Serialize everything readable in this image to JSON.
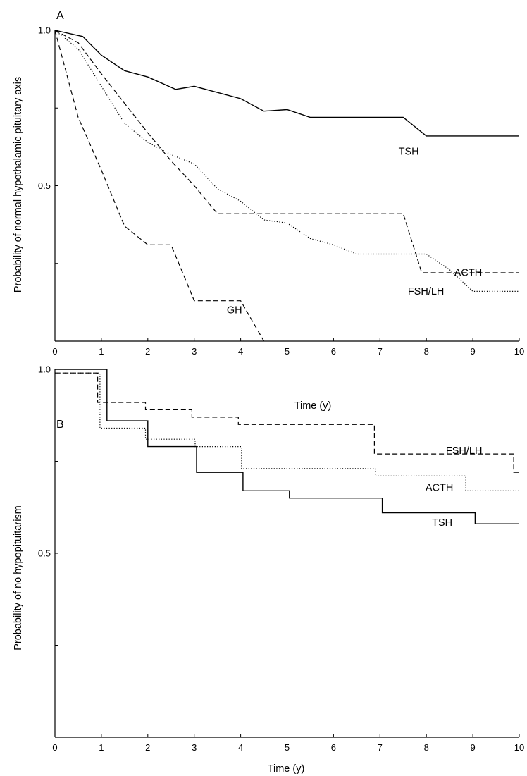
{
  "chart_data": [
    {
      "panel": "A",
      "type": "line",
      "xlabel": "Time (y)",
      "ylabel": "Probability of normal hypothalamic pituitary axis",
      "xlim": [
        0,
        10
      ],
      "ylim": [
        0,
        1.0
      ],
      "xticks": [
        0,
        1,
        2,
        3,
        4,
        5,
        6,
        7,
        8,
        9,
        10
      ],
      "xtick_labels": [
        "0",
        "1",
        "2",
        "3",
        "4",
        "5",
        "6",
        "7",
        "8",
        "9",
        "10"
      ],
      "yticks": [
        0,
        0.25,
        0.5,
        0.75,
        1.0
      ],
      "ytick_labels": [
        "",
        "",
        "0.5",
        "",
        "1.0"
      ],
      "grid": false,
      "series": [
        {
          "name": "TSH",
          "style": "solid",
          "x": [
            0,
            0.6,
            1.0,
            1.5,
            2.0,
            2.6,
            3.0,
            3.5,
            4.0,
            4.5,
            5.0,
            5.5,
            6.0,
            7.0,
            7.5,
            8.0,
            9.0,
            10.0
          ],
          "y": [
            1.0,
            0.98,
            0.92,
            0.87,
            0.85,
            0.81,
            0.82,
            0.8,
            0.78,
            0.74,
            0.745,
            0.72,
            0.72,
            0.72,
            0.72,
            0.66,
            0.66,
            0.66
          ]
        },
        {
          "name": "ACTH",
          "style": "dashed",
          "x": [
            0,
            0.5,
            1.0,
            2.0,
            2.5,
            3.0,
            3.5,
            4.0,
            5.0,
            6.0,
            7.0,
            7.5,
            7.9,
            10.0
          ],
          "y": [
            1.0,
            0.96,
            0.86,
            0.67,
            0.58,
            0.5,
            0.41,
            0.41,
            0.41,
            0.41,
            0.41,
            0.41,
            0.22,
            0.22
          ]
        },
        {
          "name": "FSH/LH",
          "style": "dotted",
          "x": [
            0,
            0.5,
            1.0,
            1.5,
            2.0,
            2.5,
            3.0,
            3.5,
            4.0,
            4.5,
            5.0,
            5.5,
            6.0,
            6.5,
            7.0,
            7.5,
            8.0,
            8.5,
            9.0,
            10.0
          ],
          "y": [
            1.0,
            0.94,
            0.82,
            0.7,
            0.64,
            0.6,
            0.57,
            0.49,
            0.45,
            0.39,
            0.38,
            0.33,
            0.31,
            0.28,
            0.28,
            0.28,
            0.28,
            0.23,
            0.16,
            0.16
          ]
        },
        {
          "name": "GH",
          "style": "dashed",
          "x": [
            0,
            0.5,
            1.0,
            1.5,
            2.0,
            2.5,
            3.0,
            3.5,
            4.0,
            4.5
          ],
          "y": [
            1.0,
            0.72,
            0.55,
            0.37,
            0.31,
            0.31,
            0.13,
            0.13,
            0.13,
            0.0
          ]
        }
      ],
      "annotations": [
        {
          "text": "TSH",
          "x": 7.4,
          "y": 0.6
        },
        {
          "text": "ACTH",
          "x": 8.6,
          "y": 0.21
        },
        {
          "text": "FSH/LH",
          "x": 7.6,
          "y": 0.15
        },
        {
          "text": "GH",
          "x": 3.7,
          "y": 0.09
        }
      ]
    },
    {
      "panel": "B",
      "type": "line",
      "xlabel": "Time (y)",
      "ylabel": "Probability of no hypopituitarism",
      "xlim": [
        0,
        10
      ],
      "ylim": [
        0,
        1.0
      ],
      "xticks": [
        0,
        1,
        2,
        3,
        4,
        5,
        6,
        7,
        8,
        9,
        10
      ],
      "xtick_labels": [
        "0",
        "1",
        "2",
        "3",
        "4",
        "5",
        "6",
        "7",
        "8",
        "9",
        "10"
      ],
      "yticks": [
        0,
        0.25,
        0.5,
        0.75,
        1.0
      ],
      "ytick_labels": [
        "",
        "",
        "0.5",
        "",
        "1.0"
      ],
      "grid": false,
      "series": [
        {
          "name": "FSH/LH",
          "style": "dashed",
          "step": true,
          "x": [
            0,
            0.92,
            1.95,
            2.95,
            3.95,
            6.88,
            9.88,
            10.0
          ],
          "y": [
            0.99,
            0.91,
            0.89,
            0.87,
            0.85,
            0.77,
            0.72,
            0.72
          ]
        },
        {
          "name": "ACTH",
          "style": "dotted",
          "step": true,
          "x": [
            0,
            0.97,
            1.95,
            3.02,
            4.02,
            6.9,
            8.85,
            10.0
          ],
          "y": [
            0.99,
            0.84,
            0.81,
            0.79,
            0.73,
            0.71,
            0.67,
            0.67
          ]
        },
        {
          "name": "TSH",
          "style": "solid",
          "step": true,
          "x": [
            0,
            1.12,
            2.0,
            3.05,
            4.05,
            5.05,
            7.05,
            9.05,
            10.0
          ],
          "y": [
            1.0,
            0.86,
            0.79,
            0.72,
            0.67,
            0.65,
            0.61,
            0.58,
            0.58
          ]
        }
      ],
      "annotations": [
        {
          "text": "FSH/LH",
          "x": 8.42,
          "y": 0.77
        },
        {
          "text": "ACTH",
          "x": 7.98,
          "y": 0.67
        },
        {
          "text": "TSH",
          "x": 8.12,
          "y": 0.575
        }
      ]
    }
  ]
}
